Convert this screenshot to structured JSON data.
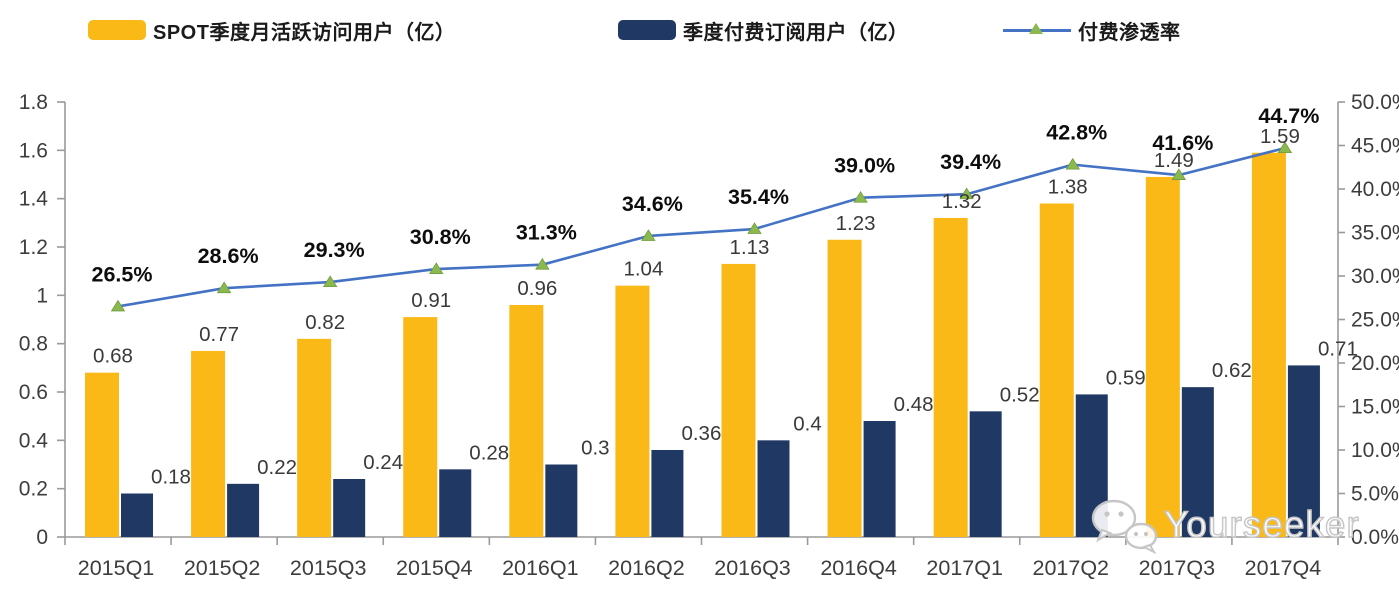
{
  "legend": {
    "items": [
      {
        "label": "SPOT季度月活跃访问用户（亿）",
        "color": "#FBB917",
        "type": "bar"
      },
      {
        "label": "季度付费订阅用户（亿）",
        "color": "#1F3864",
        "type": "bar"
      },
      {
        "label": "付费渗透率",
        "color": "#4472C4",
        "marker_color": "#8CB850",
        "type": "line"
      }
    ]
  },
  "watermark": {
    "text": "Yourseeker"
  },
  "chart_data": {
    "type": "combo_bar_line",
    "categories": [
      "2015Q1",
      "2015Q2",
      "2015Q3",
      "2015Q4",
      "2016Q1",
      "2016Q2",
      "2016Q3",
      "2016Q4",
      "2017Q1",
      "2017Q2",
      "2017Q3",
      "2017Q4"
    ],
    "series": [
      {
        "name": "SPOT季度月活跃访问用户（亿）",
        "type": "bar",
        "axis": "left",
        "color": "#FBB917",
        "values": [
          0.68,
          0.77,
          0.82,
          0.91,
          0.96,
          1.04,
          1.13,
          1.23,
          1.32,
          1.38,
          1.49,
          1.59
        ],
        "labels": [
          "0.68",
          "0.77",
          "0.82",
          "0.91",
          "0.96",
          "1.04",
          "1.13",
          "1.23",
          "1.32",
          "1.38",
          "1.49",
          "1.59"
        ]
      },
      {
        "name": "季度付费订阅用户（亿）",
        "type": "bar",
        "axis": "left",
        "color": "#1F3864",
        "values": [
          0.18,
          0.22,
          0.24,
          0.28,
          0.3,
          0.36,
          0.4,
          0.48,
          0.52,
          0.59,
          0.62,
          0.71
        ],
        "labels": [
          "0.18",
          "0.22",
          "0.24",
          "0.28",
          "0.3",
          "0.36",
          "0.4",
          "0.48",
          "0.52",
          "0.59",
          "0.62",
          "0.71"
        ]
      },
      {
        "name": "付费渗透率",
        "type": "line",
        "axis": "right",
        "color": "#4472C4",
        "marker": "triangle",
        "marker_color": "#8CB850",
        "values": [
          26.5,
          28.6,
          29.3,
          30.8,
          31.3,
          34.6,
          35.4,
          39.0,
          39.4,
          42.8,
          41.6,
          44.7
        ],
        "labels": [
          "26.5%",
          "28.6%",
          "29.3%",
          "30.8%",
          "31.3%",
          "34.6%",
          "35.4%",
          "39.0%",
          "39.4%",
          "42.8%",
          "41.6%",
          "44.7%"
        ]
      }
    ],
    "left_axis": {
      "min": 0,
      "max": 1.8,
      "tick_step": 0.2,
      "tick_labels": [
        "0",
        "0.2",
        "0.4",
        "0.6",
        "0.8",
        "1",
        "1.2",
        "1.4",
        "1.6",
        "1.8"
      ]
    },
    "right_axis": {
      "min": 0,
      "max": 50,
      "tick_step": 5,
      "tick_labels": [
        "0.0%",
        "5.0%",
        "10.0%",
        "15.0%",
        "20.0%",
        "25.0%",
        "30.0%",
        "35.0%",
        "40.0%",
        "45.0%",
        "50.0%"
      ]
    },
    "grid": false,
    "legend_position": "top"
  }
}
